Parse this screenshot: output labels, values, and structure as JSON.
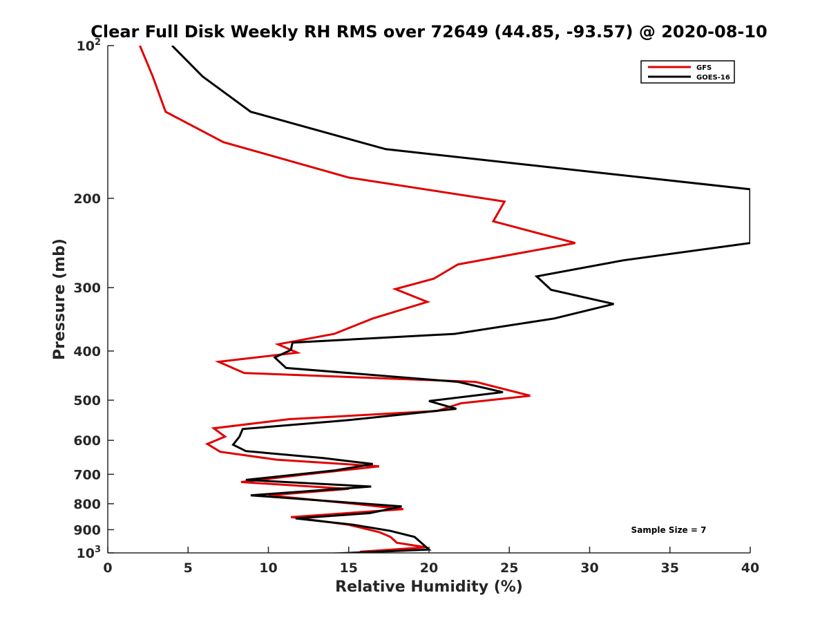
{
  "chart_data": {
    "type": "line",
    "title": "Clear Full Disk Weekly RH RMS over 72649 (44.85, -93.57) @ 2020-08-10",
    "xlabel": "Relative Humidity (%)",
    "ylabel": "Pressure (mb)",
    "xlim": [
      0,
      40
    ],
    "ylim": [
      100,
      1000
    ],
    "y_scale": "log",
    "y_reversed": true,
    "x_ticks": [
      "0",
      "5",
      "10",
      "15",
      "20",
      "25",
      "30",
      "35",
      "40"
    ],
    "y_ticks": [
      {
        "value": 100,
        "base": "10",
        "exp": "2"
      },
      {
        "value": 200,
        "label": "200"
      },
      {
        "value": 300,
        "label": "300"
      },
      {
        "value": 400,
        "label": "400"
      },
      {
        "value": 500,
        "label": "500"
      },
      {
        "value": 600,
        "label": "600"
      },
      {
        "value": 700,
        "label": "700"
      },
      {
        "value": 800,
        "label": "800"
      },
      {
        "value": 900,
        "label": "900"
      },
      {
        "value": 1000,
        "base": "10",
        "exp": "3"
      }
    ],
    "legend_position": "top-right",
    "grid": false,
    "annotation": "Sample Size = 7",
    "series": [
      {
        "name": "GFS",
        "color": "#e00000",
        "x": [
          2.0,
          2.8,
          3.6,
          7.2,
          15.0,
          24.7,
          24.0,
          29.1,
          21.8,
          20.3,
          17.9,
          19.9,
          16.5,
          14.1,
          10.6,
          11.8,
          6.9,
          8.5,
          22.9,
          26.3,
          22.0,
          20.5,
          11.3,
          6.6,
          7.3,
          6.2,
          7.0,
          10.5,
          16.9,
          12.4,
          8.3,
          15.0,
          10.0,
          15.3,
          18.4,
          11.4,
          15.0,
          16.9,
          17.6,
          18.0,
          19.8,
          15.7
        ],
        "y": [
          100,
          115,
          135,
          155,
          182,
          203,
          222,
          245,
          270,
          288,
          302,
          320,
          345,
          370,
          388,
          403,
          420,
          442,
          460,
          490,
          507,
          525,
          545,
          568,
          590,
          610,
          632,
          655,
          675,
          700,
          725,
          748,
          770,
          800,
          820,
          850,
          880,
          910,
          930,
          955,
          975,
          995
        ]
      },
      {
        "name": "GOES-16",
        "color": "#000000",
        "x": [
          4.0,
          5.9,
          8.9,
          17.3,
          40.0,
          40.0,
          32.1,
          26.7,
          27.6,
          31.5,
          27.8,
          21.6,
          11.5,
          11.4,
          10.4,
          11.1,
          21.8,
          24.6,
          20.0,
          21.7,
          14.8,
          8.4,
          8.2,
          7.8,
          8.6,
          13.4,
          16.5,
          14.1,
          8.6,
          16.4,
          8.9,
          18.3,
          16.3,
          11.7,
          15.3,
          17.6,
          19.1,
          19.6,
          20.0,
          13.4
        ],
        "y": [
          100,
          115,
          135,
          160,
          192,
          245,
          265,
          285,
          303,
          323,
          345,
          370,
          385,
          398,
          412,
          432,
          460,
          482,
          502,
          520,
          548,
          570,
          590,
          612,
          630,
          650,
          668,
          688,
          718,
          740,
          770,
          810,
          835,
          855,
          880,
          905,
          930,
          960,
          985,
          1005
        ]
      }
    ]
  }
}
